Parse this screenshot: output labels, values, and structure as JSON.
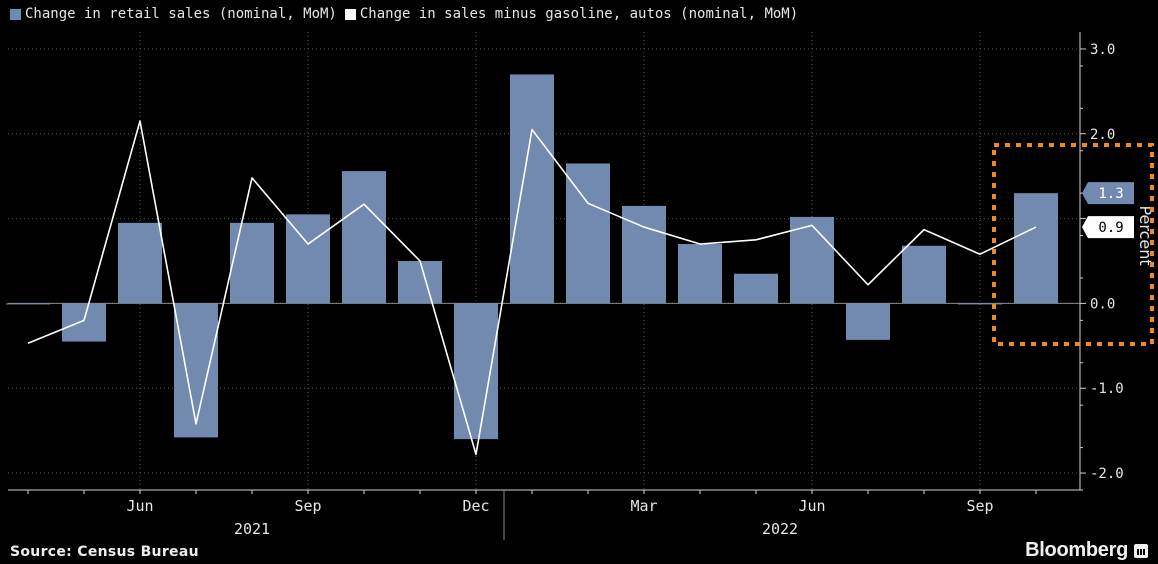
{
  "legend": {
    "series1_label": "Change in retail sales (nominal, MoM)",
    "series2_label": "Change in sales minus gasoline, autos (nominal, MoM)"
  },
  "source": "Source: Census Bureau",
  "brand": "Bloomberg",
  "colors": {
    "bar": "#7289b0",
    "line": "#ffffff",
    "background": "#000000",
    "grid": "#5a5a5a",
    "highlight": "#f08a1e"
  },
  "chart_data": {
    "type": "bar+line",
    "x": [
      "2021-04",
      "2021-05",
      "2021-06",
      "2021-07",
      "2021-08",
      "2021-09",
      "2021-10",
      "2021-11",
      "2021-12",
      "2022-01",
      "2022-02",
      "2022-03",
      "2022-04",
      "2022-05",
      "2022-06",
      "2022-07",
      "2022-08",
      "2022-09",
      "2022-10"
    ],
    "series": [
      {
        "name": "Change in retail sales (nominal, MoM)",
        "type": "bar",
        "values": [
          0.0,
          -0.45,
          0.95,
          -1.58,
          0.95,
          1.05,
          1.56,
          0.5,
          -1.6,
          2.7,
          1.65,
          1.15,
          0.7,
          0.35,
          1.02,
          -0.43,
          0.68,
          0.0,
          1.3
        ]
      },
      {
        "name": "Change in sales minus gasoline, autos (nominal, MoM)",
        "type": "line",
        "values": [
          -0.47,
          -0.2,
          2.15,
          -1.42,
          1.48,
          0.7,
          1.17,
          0.5,
          -1.78,
          2.05,
          1.18,
          0.9,
          0.7,
          0.75,
          0.92,
          0.22,
          0.87,
          0.58,
          0.9
        ]
      }
    ],
    "x_tick_labels": [
      "Jun",
      "Sep",
      "Dec",
      "Mar",
      "Jun",
      "Sep"
    ],
    "x_tick_months": [
      "2021-06",
      "2021-09",
      "2021-12",
      "2022-03",
      "2022-06",
      "2022-09"
    ],
    "year_labels": [
      "2021",
      "2022"
    ],
    "ylabel": "Percent",
    "y_ticks": [
      3.0,
      2.0,
      1.0,
      0.0,
      -1.0,
      -2.0
    ],
    "y_tick_labels": [
      "3.0",
      "2.0",
      "",
      "0.0",
      "-1.0",
      "-2.0"
    ],
    "ylim": [
      -2.2,
      3.2
    ],
    "end_labels": [
      "1.3",
      "0.9"
    ],
    "grid": true,
    "highlight_box": true
  }
}
